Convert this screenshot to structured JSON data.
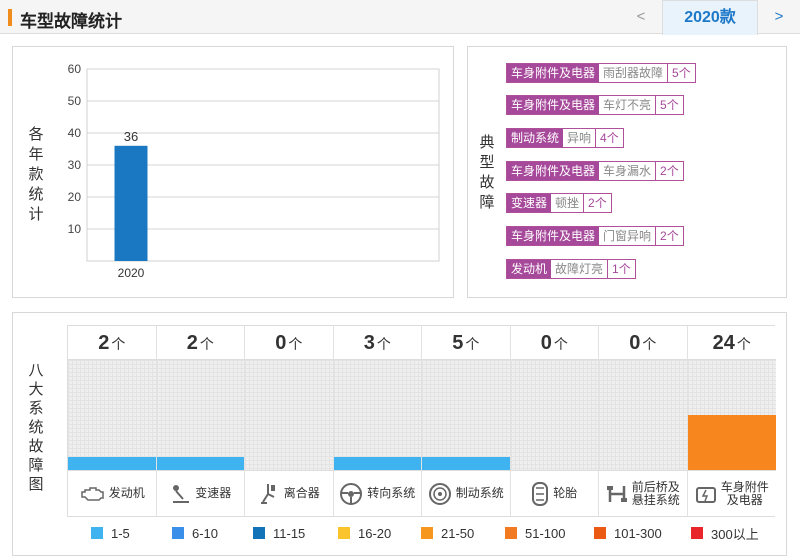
{
  "header": {
    "title": "车型故障统计",
    "prev_label": "<",
    "year_tab": "2020款",
    "next_label": ">"
  },
  "yearly": {
    "label_chars": [
      "各",
      "年",
      "款",
      "统",
      "计"
    ]
  },
  "chart_data": {
    "type": "bar",
    "categories": [
      "2020"
    ],
    "values": [
      36
    ],
    "ylim": [
      0,
      60
    ],
    "yticks": [
      10,
      20,
      30,
      40,
      50,
      60
    ],
    "bar_color": "#1a78c2",
    "grid": true
  },
  "typical": {
    "label_chars": [
      "典",
      "型",
      "故",
      "障"
    ],
    "items": [
      {
        "category": "车身附件及电器",
        "name": "雨刮器故障",
        "count": "5个"
      },
      {
        "category": "车身附件及电器",
        "name": "车灯不亮",
        "count": "5个"
      },
      {
        "category": "制动系统",
        "name": "异响",
        "count": "4个"
      },
      {
        "category": "车身附件及电器",
        "name": "车身漏水",
        "count": "2个"
      },
      {
        "category": "变速器",
        "name": "顿挫",
        "count": "2个"
      },
      {
        "category": "车身附件及电器",
        "name": "门窗异响",
        "count": "2个"
      },
      {
        "category": "发动机",
        "name": "故障灯亮",
        "count": "1个"
      }
    ]
  },
  "systems": {
    "label_chars": [
      "八",
      "大",
      "系",
      "统",
      "故",
      "障",
      "图"
    ],
    "unit": "个",
    "items": [
      {
        "count": "2",
        "label": "发动机",
        "icon": "engine-icon",
        "level": 0.12,
        "color": "#3fb2f0"
      },
      {
        "count": "2",
        "label": "变速器",
        "icon": "gear-shift-icon",
        "level": 0.12,
        "color": "#3fb2f0"
      },
      {
        "count": "0",
        "label": "离合器",
        "icon": "clutch-icon",
        "level": 0,
        "color": "#3fb2f0"
      },
      {
        "count": "3",
        "label": "转向系统",
        "icon": "steering-wheel-icon",
        "level": 0.12,
        "color": "#3fb2f0"
      },
      {
        "count": "5",
        "label": "制动系统",
        "icon": "brake-disc-icon",
        "level": 0.12,
        "color": "#3fb2f0"
      },
      {
        "count": "0",
        "label": "轮胎",
        "icon": "tire-icon",
        "level": 0,
        "color": "#3fb2f0"
      },
      {
        "count": "0",
        "label": "前后桥及悬挂系统",
        "label_lines": [
          "前后桥及",
          "悬挂系统"
        ],
        "icon": "suspension-icon",
        "level": 0,
        "color": "#3fb2f0"
      },
      {
        "count": "24",
        "label": "车身附件及电器",
        "label_lines": [
          "车身附件",
          "及电器"
        ],
        "icon": "car-body-electric-icon",
        "level": 0.5,
        "color": "#f7861e"
      }
    ]
  },
  "legend": [
    {
      "label": "1-5",
      "color": "#3fb2f0"
    },
    {
      "label": "6-10",
      "color": "#3a8fe8"
    },
    {
      "label": "11-15",
      "color": "#1273b8"
    },
    {
      "label": "16-20",
      "color": "#f9c42c"
    },
    {
      "label": "21-50",
      "color": "#f7961e"
    },
    {
      "label": "51-100",
      "color": "#f27a20"
    },
    {
      "label": "101-300",
      "color": "#ea5a12"
    },
    {
      "label": "300以上",
      "color": "#e8262a"
    }
  ]
}
